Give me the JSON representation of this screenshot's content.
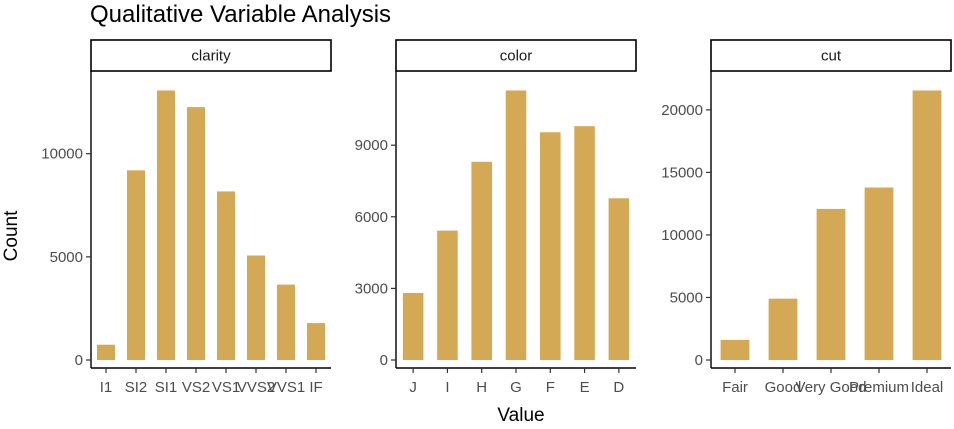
{
  "chart_data": {
    "type": "bar",
    "title": "Qualitative Variable Analysis",
    "xlabel": "Value",
    "ylabel": "Count",
    "bar_color": "#D4A955",
    "grid": false,
    "legend": "none",
    "panels": [
      {
        "name": "clarity",
        "categories": [
          "I1",
          "SI2",
          "SI1",
          "VS2",
          "VS1",
          "VVS2",
          "VVS1",
          "IF"
        ],
        "values": [
          741,
          9194,
          13065,
          12258,
          8171,
          5066,
          3655,
          1790
        ],
        "yticks": [
          0,
          5000,
          10000
        ],
        "ytick_labels": [
          "0",
          "5000",
          "10000"
        ],
        "ylim": [
          0,
          13718
        ]
      },
      {
        "name": "color",
        "categories": [
          "J",
          "I",
          "H",
          "G",
          "F",
          "E",
          "D"
        ],
        "values": [
          2808,
          5422,
          8304,
          11292,
          9542,
          9797,
          6775
        ],
        "yticks": [
          0,
          3000,
          6000,
          9000
        ],
        "ytick_labels": [
          "0",
          "3000",
          "6000",
          "9000"
        ],
        "ylim": [
          0,
          11857
        ]
      },
      {
        "name": "cut",
        "categories": [
          "Fair",
          "Good",
          "Very Good",
          "Premium",
          "Ideal"
        ],
        "values": [
          1610,
          4906,
          12082,
          13791,
          21551
        ],
        "yticks": [
          0,
          5000,
          10000,
          15000,
          20000
        ],
        "ytick_labels": [
          "0",
          "5000",
          "10000",
          "15000",
          "20000"
        ],
        "ylim": [
          0,
          22629
        ]
      }
    ]
  }
}
